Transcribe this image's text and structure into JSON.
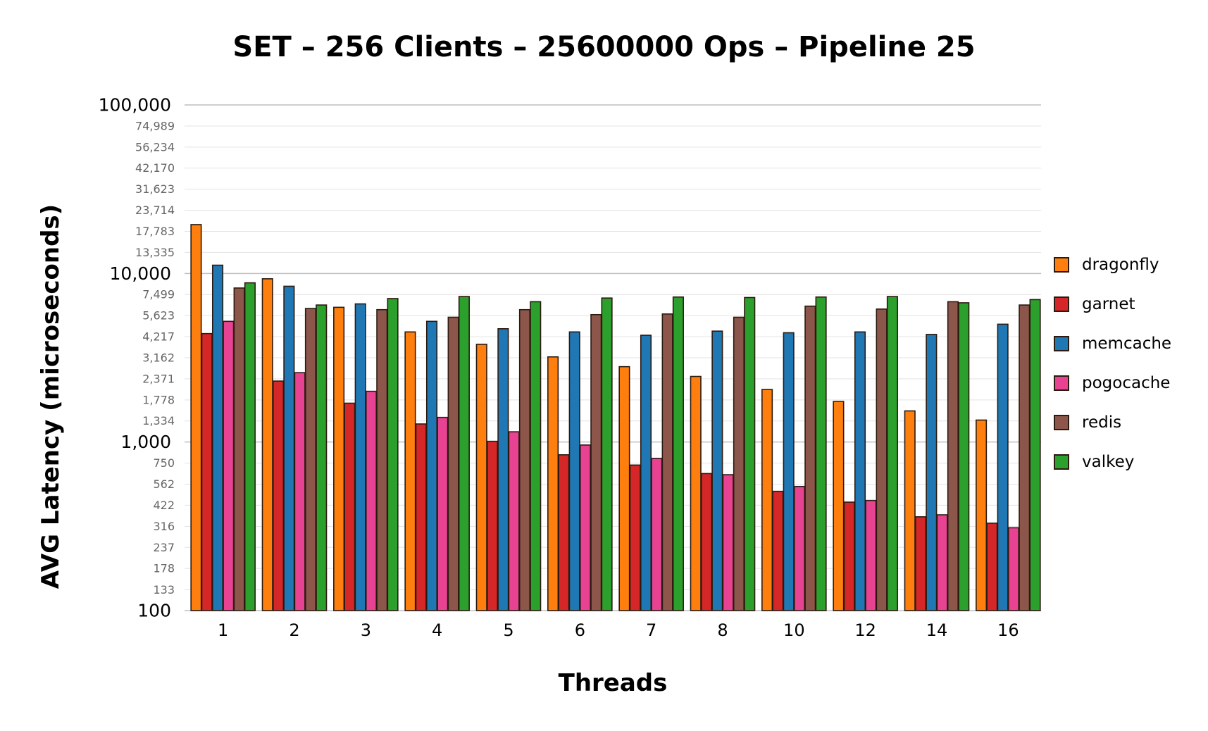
{
  "chart_data": {
    "type": "bar",
    "title": "SET – 256 Clients – 25600000 Ops – Pipeline 25",
    "xlabel": "Threads",
    "ylabel": "AVG Latency (microseconds)",
    "y_scale": "log",
    "ylim": [
      100,
      100000
    ],
    "grid": true,
    "legend_position": "right",
    "y_ticks_major": [
      "100",
      "1,000",
      "10,000",
      "100,000"
    ],
    "y_tick_values": [
      100,
      133,
      178,
      237,
      316,
      422,
      562,
      750,
      1000,
      1334,
      1778,
      2371,
      3162,
      4217,
      5623,
      7499,
      10000,
      13335,
      17783,
      23714,
      31623,
      42170,
      56234,
      74989,
      100000
    ],
    "y_tick_labels": [
      "100",
      "133",
      "178",
      "237",
      "316",
      "422",
      "562",
      "750",
      "1,000",
      "1,334",
      "1,778",
      "2,371",
      "3,162",
      "4,217",
      "5,623",
      "7,499",
      "10,000",
      "13,335",
      "17,783",
      "23,714",
      "31,623",
      "42,170",
      "56,234",
      "74,989",
      "100,000"
    ],
    "categories": [
      "1",
      "2",
      "3",
      "4",
      "5",
      "6",
      "7",
      "8",
      "10",
      "12",
      "14",
      "16"
    ],
    "series": [
      {
        "name": "dragonfly",
        "color": "#ff7f0e",
        "values": [
          19500,
          9300,
          6300,
          4500,
          3800,
          3200,
          2800,
          2450,
          2050,
          1740,
          1530,
          1350
        ]
      },
      {
        "name": "garnet",
        "color": "#d62728",
        "values": [
          4400,
          2300,
          1700,
          1280,
          1010,
          840,
          730,
          650,
          510,
          440,
          360,
          330
        ]
      },
      {
        "name": "memcache",
        "color": "#1f77b4",
        "values": [
          11200,
          8400,
          6600,
          5200,
          4700,
          4500,
          4300,
          4550,
          4450,
          4500,
          4350,
          5000
        ]
      },
      {
        "name": "pogocache",
        "color": "#e84393",
        "values": [
          5200,
          2580,
          2000,
          1400,
          1150,
          960,
          800,
          640,
          545,
          450,
          370,
          310
        ]
      },
      {
        "name": "redis",
        "color": "#8c564b",
        "values": [
          8200,
          6200,
          6100,
          5500,
          6100,
          5700,
          5750,
          5500,
          6400,
          6150,
          6800,
          6500
        ]
      },
      {
        "name": "valkey",
        "color": "#2ca02c",
        "values": [
          8800,
          6500,
          7100,
          7300,
          6800,
          7150,
          7250,
          7200,
          7250,
          7300,
          6700,
          7000
        ]
      }
    ]
  }
}
